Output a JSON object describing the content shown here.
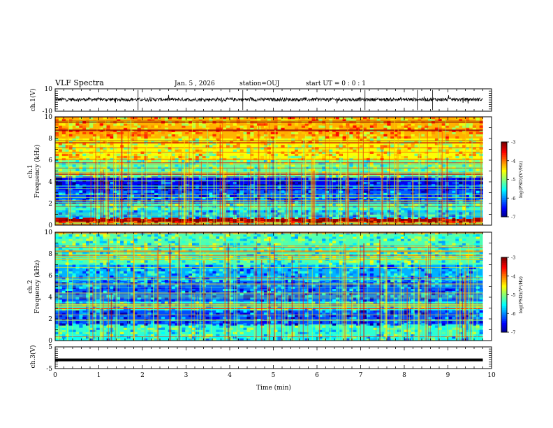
{
  "header": {
    "title": "VLF Spectra",
    "date": "Jan. 5 , 2026",
    "station": "station=OUJ",
    "start_ut": "start UT = 0 : 0 : 1"
  },
  "chart_data": [
    {
      "type": "line",
      "id": "ch1-waveform",
      "ylabel": "ch.1(V)",
      "ylim": [
        -10,
        10
      ],
      "ytick_labels": [
        "10",
        "-10"
      ],
      "xlim": [
        0,
        10
      ],
      "signal_end_min": 9.8,
      "baseline_v": 0.5,
      "noise_amplitude_v": 1.5
    },
    {
      "type": "heatmap",
      "id": "ch1-spectrogram",
      "ylabel": "ch.1",
      "ylabel2": "Frequency (kHz)",
      "ylim": [
        0,
        10
      ],
      "ytick_labels": [
        "0",
        "2",
        "4",
        "6",
        "8",
        "10"
      ],
      "xlim": [
        0,
        10
      ],
      "data_end_min": 9.8,
      "colorbar": {
        "label": "log(PSD)(V²/Hz)",
        "range": [
          -7,
          -3
        ],
        "tick_labels": [
          "-3",
          "-4",
          "-5",
          "-6",
          "-7"
        ]
      },
      "band_levels": [
        {
          "f_khz": [
            0,
            0.3
          ],
          "level": 0.55
        },
        {
          "f_khz": [
            0.3,
            0.7
          ],
          "level": 0.95
        },
        {
          "f_khz": [
            0.7,
            1.4
          ],
          "level": 0.32
        },
        {
          "f_khz": [
            1.4,
            2.0
          ],
          "level": 0.45
        },
        {
          "f_khz": [
            2.0,
            3.2
          ],
          "level": 0.22
        },
        {
          "f_khz": [
            3.2,
            4.5
          ],
          "level": 0.12
        },
        {
          "f_khz": [
            4.5,
            6.0
          ],
          "level": 0.48
        },
        {
          "f_khz": [
            6.0,
            8.0
          ],
          "level": 0.62
        },
        {
          "f_khz": [
            8.0,
            10.0
          ],
          "level": 0.7
        }
      ]
    },
    {
      "type": "heatmap",
      "id": "ch2-spectrogram",
      "ylabel": "ch.2",
      "ylabel2": "Frequency (kHz)",
      "ylim": [
        0,
        10
      ],
      "ytick_labels": [
        "0",
        "2",
        "4",
        "6",
        "8",
        "10"
      ],
      "xlim": [
        0,
        10
      ],
      "data_end_min": 9.8,
      "colorbar": {
        "label": "log(PSD)(V²/Hz)",
        "range": [
          -7,
          -3
        ],
        "tick_labels": [
          "-3",
          "-4",
          "-5",
          "-6",
          "-7"
        ]
      },
      "band_levels": [
        {
          "f_khz": [
            0,
            0.5
          ],
          "level": 0.38
        },
        {
          "f_khz": [
            0.5,
            1.5
          ],
          "level": 0.42
        },
        {
          "f_khz": [
            1.5,
            2.8
          ],
          "level": 0.2
        },
        {
          "f_khz": [
            2.8,
            3.6
          ],
          "level": 0.4
        },
        {
          "f_khz": [
            3.6,
            5.5
          ],
          "level": 0.22
        },
        {
          "f_khz": [
            5.5,
            7.0
          ],
          "level": 0.3
        },
        {
          "f_khz": [
            7.0,
            10.0
          ],
          "level": 0.45
        }
      ]
    },
    {
      "type": "line",
      "id": "ch3-waveform",
      "ylabel": "ch.3(V)",
      "ylim": [
        -5,
        5
      ],
      "ytick_labels": [
        "5",
        "-5"
      ],
      "xlim": [
        0,
        10
      ],
      "signal_end_min": 9.8,
      "baseline_v": -1.0,
      "xlabel": "Time (min)",
      "xtick_labels": [
        "0",
        "1",
        "2",
        "3",
        "4",
        "5",
        "6",
        "7",
        "8",
        "9",
        "10"
      ]
    }
  ]
}
